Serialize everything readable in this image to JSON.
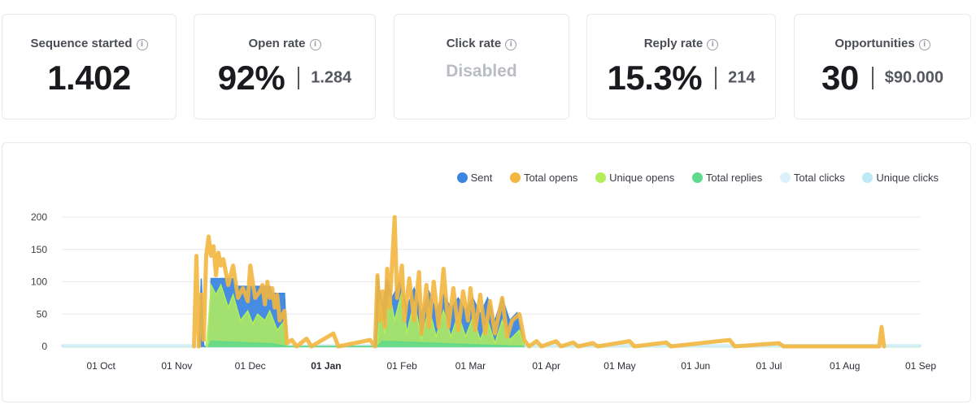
{
  "stats": [
    {
      "title": "Sequence started",
      "value": "1.402",
      "secondary": ""
    },
    {
      "title": "Open rate",
      "value": "92%",
      "secondary": "1.284"
    },
    {
      "title": "Click rate",
      "value": "",
      "secondary": "",
      "disabled_text": "Disabled"
    },
    {
      "title": "Reply rate",
      "value": "15.3%",
      "secondary": "214"
    },
    {
      "title": "Opportunities",
      "value": "30",
      "secondary": "$90.000"
    }
  ],
  "chart_data": {
    "type": "area",
    "title": "",
    "xlabel": "",
    "ylabel": "",
    "ylim": [
      0,
      200
    ],
    "yticks": [
      0,
      50,
      100,
      150,
      200
    ],
    "x_ticks": [
      "01 Oct",
      "01 Nov",
      "01 Dec",
      "01 Jan",
      "01 Feb",
      "01 Mar",
      "01 Apr",
      "01 May",
      "01 Jun",
      "01 Jul",
      "01 Aug",
      "01 Sep"
    ],
    "x_tick_bold": "01 Jan",
    "x": [
      "2022-09-15",
      "2023-09-01"
    ],
    "grid": true,
    "legend_position": "top-right",
    "series": [
      {
        "name": "Sent",
        "color": "#3b86e0",
        "points": [
          [
            "2022-11-10",
            0
          ],
          [
            "2022-11-11",
            105
          ],
          [
            "2022-11-12",
            0
          ],
          [
            "2022-11-14",
            0
          ],
          [
            "2022-11-15",
            105
          ],
          [
            "2022-11-24",
            105
          ],
          [
            "2022-11-25",
            93
          ],
          [
            "2022-12-09",
            93
          ],
          [
            "2022-12-10",
            82
          ],
          [
            "2022-12-15",
            82
          ],
          [
            "2022-12-16",
            0
          ],
          [
            "2023-01-21",
            0
          ],
          [
            "2023-01-22",
            110
          ],
          [
            "2023-01-24",
            60
          ],
          [
            "2023-01-26",
            105
          ],
          [
            "2023-01-28",
            75
          ],
          [
            "2023-01-31",
            100
          ],
          [
            "2023-02-03",
            60
          ],
          [
            "2023-02-06",
            90
          ],
          [
            "2023-02-09",
            50
          ],
          [
            "2023-02-12",
            85
          ],
          [
            "2023-02-15",
            55
          ],
          [
            "2023-02-18",
            80
          ],
          [
            "2023-02-21",
            60
          ],
          [
            "2023-02-24",
            75
          ],
          [
            "2023-02-27",
            55
          ],
          [
            "2023-03-02",
            75
          ],
          [
            "2023-03-05",
            50
          ],
          [
            "2023-03-08",
            75
          ],
          [
            "2023-03-11",
            40
          ],
          [
            "2023-03-14",
            75
          ],
          [
            "2023-03-17",
            40
          ],
          [
            "2023-03-20",
            52
          ],
          [
            "2023-03-22",
            20
          ],
          [
            "2023-03-23",
            0
          ]
        ]
      },
      {
        "name": "Total opens",
        "color": "#f3b63f",
        "points": [
          [
            "2022-11-08",
            0
          ],
          [
            "2022-11-09",
            140
          ],
          [
            "2022-11-10",
            0
          ],
          [
            "2022-11-11",
            80
          ],
          [
            "2022-11-12",
            10
          ],
          [
            "2022-11-13",
            140
          ],
          [
            "2022-11-14",
            170
          ],
          [
            "2022-11-15",
            140
          ],
          [
            "2022-11-16",
            155
          ],
          [
            "2022-11-17",
            110
          ],
          [
            "2022-11-18",
            145
          ],
          [
            "2022-11-19",
            125
          ],
          [
            "2022-11-20",
            135
          ],
          [
            "2022-11-22",
            95
          ],
          [
            "2022-11-24",
            125
          ],
          [
            "2022-11-26",
            75
          ],
          [
            "2022-11-28",
            90
          ],
          [
            "2022-11-30",
            70
          ],
          [
            "2022-12-01",
            125
          ],
          [
            "2022-12-03",
            75
          ],
          [
            "2022-12-05",
            85
          ],
          [
            "2022-12-06",
            95
          ],
          [
            "2022-12-07",
            65
          ],
          [
            "2022-12-08",
            100
          ],
          [
            "2022-12-09",
            75
          ],
          [
            "2022-12-10",
            90
          ],
          [
            "2022-12-11",
            60
          ],
          [
            "2022-12-12",
            80
          ],
          [
            "2022-12-13",
            40
          ],
          [
            "2022-12-15",
            55
          ],
          [
            "2022-12-16",
            5
          ],
          [
            "2022-12-18",
            10
          ],
          [
            "2022-12-20",
            0
          ],
          [
            "2022-12-24",
            12
          ],
          [
            "2022-12-26",
            0
          ],
          [
            "2023-01-04",
            20
          ],
          [
            "2023-01-06",
            0
          ],
          [
            "2023-01-19",
            10
          ],
          [
            "2023-01-21",
            0
          ],
          [
            "2023-01-22",
            110
          ],
          [
            "2023-01-23",
            40
          ],
          [
            "2023-01-24",
            85
          ],
          [
            "2023-01-25",
            30
          ],
          [
            "2023-01-26",
            120
          ],
          [
            "2023-01-27",
            60
          ],
          [
            "2023-01-29",
            200
          ],
          [
            "2023-01-30",
            75
          ],
          [
            "2023-02-01",
            125
          ],
          [
            "2023-02-02",
            40
          ],
          [
            "2023-02-04",
            105
          ],
          [
            "2023-02-06",
            40
          ],
          [
            "2023-02-08",
            115
          ],
          [
            "2023-02-09",
            20
          ],
          [
            "2023-02-11",
            95
          ],
          [
            "2023-02-12",
            30
          ],
          [
            "2023-02-14",
            100
          ],
          [
            "2023-02-16",
            30
          ],
          [
            "2023-02-18",
            120
          ],
          [
            "2023-02-20",
            30
          ],
          [
            "2023-02-22",
            90
          ],
          [
            "2023-02-24",
            25
          ],
          [
            "2023-02-26",
            85
          ],
          [
            "2023-02-28",
            40
          ],
          [
            "2023-03-01",
            90
          ],
          [
            "2023-03-03",
            25
          ],
          [
            "2023-03-05",
            80
          ],
          [
            "2023-03-07",
            20
          ],
          [
            "2023-03-09",
            70
          ],
          [
            "2023-03-11",
            20
          ],
          [
            "2023-03-14",
            75
          ],
          [
            "2023-03-16",
            15
          ],
          [
            "2023-03-18",
            40
          ],
          [
            "2023-03-21",
            50
          ],
          [
            "2023-03-23",
            10
          ],
          [
            "2023-03-25",
            0
          ],
          [
            "2023-03-28",
            8
          ],
          [
            "2023-03-30",
            0
          ],
          [
            "2023-04-05",
            8
          ],
          [
            "2023-04-07",
            0
          ],
          [
            "2023-04-12",
            6
          ],
          [
            "2023-04-14",
            0
          ],
          [
            "2023-04-20",
            5
          ],
          [
            "2023-04-22",
            0
          ],
          [
            "2023-05-05",
            8
          ],
          [
            "2023-05-07",
            0
          ],
          [
            "2023-05-20",
            6
          ],
          [
            "2023-05-22",
            0
          ],
          [
            "2023-06-15",
            10
          ],
          [
            "2023-06-17",
            0
          ],
          [
            "2023-07-05",
            5
          ],
          [
            "2023-07-07",
            0
          ],
          [
            "2023-08-15",
            0
          ],
          [
            "2023-08-16",
            30
          ],
          [
            "2023-08-17",
            0
          ]
        ]
      },
      {
        "name": "Unique opens",
        "color": "#b3ee5a",
        "points": [
          [
            "2022-11-13",
            0
          ],
          [
            "2022-11-14",
            40
          ],
          [
            "2022-11-15",
            95
          ],
          [
            "2022-11-17",
            80
          ],
          [
            "2022-11-19",
            95
          ],
          [
            "2022-11-22",
            60
          ],
          [
            "2022-11-24",
            80
          ],
          [
            "2022-11-27",
            40
          ],
          [
            "2022-11-30",
            55
          ],
          [
            "2022-12-02",
            35
          ],
          [
            "2022-12-04",
            50
          ],
          [
            "2022-12-07",
            40
          ],
          [
            "2022-12-09",
            55
          ],
          [
            "2022-12-12",
            25
          ],
          [
            "2022-12-15",
            40
          ],
          [
            "2022-12-16",
            0
          ],
          [
            "2023-01-22",
            0
          ],
          [
            "2023-01-23",
            75
          ],
          [
            "2023-01-25",
            20
          ],
          [
            "2023-01-27",
            80
          ],
          [
            "2023-01-29",
            40
          ],
          [
            "2023-02-01",
            85
          ],
          [
            "2023-02-03",
            20
          ],
          [
            "2023-02-06",
            70
          ],
          [
            "2023-02-09",
            10
          ],
          [
            "2023-02-12",
            60
          ],
          [
            "2023-02-15",
            15
          ],
          [
            "2023-02-18",
            55
          ],
          [
            "2023-02-21",
            15
          ],
          [
            "2023-02-24",
            50
          ],
          [
            "2023-02-27",
            15
          ],
          [
            "2023-03-02",
            45
          ],
          [
            "2023-03-05",
            10
          ],
          [
            "2023-03-08",
            40
          ],
          [
            "2023-03-11",
            5
          ],
          [
            "2023-03-14",
            40
          ],
          [
            "2023-03-17",
            10
          ],
          [
            "2023-03-21",
            25
          ],
          [
            "2023-03-23",
            0
          ]
        ]
      },
      {
        "name": "Total replies",
        "color": "#5fd98c",
        "points": [
          [
            "2022-11-14",
            0
          ],
          [
            "2022-11-15",
            8
          ],
          [
            "2022-12-10",
            4
          ],
          [
            "2022-12-16",
            0
          ],
          [
            "2023-01-22",
            0
          ],
          [
            "2023-01-24",
            8
          ],
          [
            "2023-02-20",
            4
          ],
          [
            "2023-03-23",
            0
          ]
        ]
      },
      {
        "name": "Total clicks",
        "color": "#daf1fb",
        "points": [
          [
            "2022-09-15",
            2
          ],
          [
            "2023-09-01",
            2
          ]
        ]
      },
      {
        "name": "Unique clicks",
        "color": "#bde8f6",
        "points": [
          [
            "2022-09-15",
            1
          ],
          [
            "2023-09-01",
            1
          ]
        ]
      }
    ]
  }
}
